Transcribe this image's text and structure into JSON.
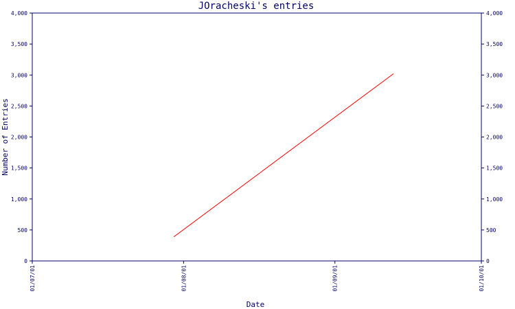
{
  "colors": {
    "axis": "#000066",
    "line": "#ff0000",
    "background": "#ffffff"
  },
  "chart_data": {
    "type": "line",
    "title": "JOracheski's entries",
    "xlabel": "Date",
    "ylabel": "Number of Entries",
    "x_ticks": [
      "01/07/01",
      "01/08/01",
      "01/09/01",
      "01/10/01"
    ],
    "y_ticks": [
      "0",
      "500",
      "1,000",
      "1,500",
      "2,000",
      "2,500",
      "3,000",
      "3,500",
      "4,000"
    ],
    "y_ticks_right": [
      "0",
      "500",
      "1,000",
      "1,500",
      "2,000",
      "2,500",
      "3,000",
      "3,500",
      "4,000"
    ],
    "xlim": [
      "2001-07-01",
      "2001-10-01"
    ],
    "ylim": [
      0,
      4000
    ],
    "grid": false,
    "legend": "none",
    "series": [
      {
        "x": [
          "2001-07-30",
          "2001-09-13"
        ],
        "y": [
          390,
          3020
        ]
      }
    ]
  }
}
